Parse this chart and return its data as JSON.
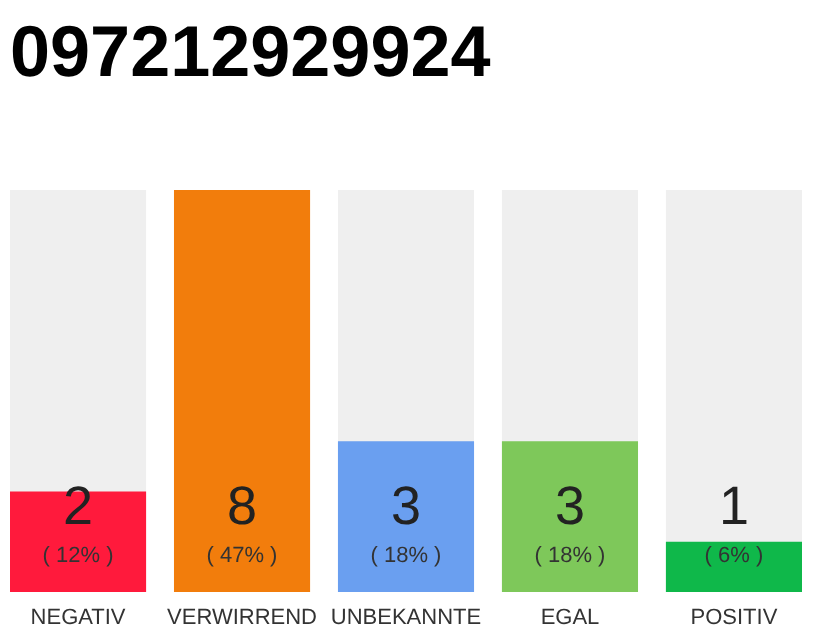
{
  "chart_data": {
    "type": "bar",
    "title": "097212929924",
    "categories": [
      "NEGATIV",
      "VERWIRREND",
      "UNBEKANNTE",
      "EGAL",
      "POSITIV"
    ],
    "values": [
      2,
      8,
      3,
      3,
      1
    ],
    "colors": [
      "#ff1a3c",
      "#f27d0c",
      "#6a9ff0",
      "#7ec85a",
      "#0fb84a"
    ],
    "ylim": [
      0,
      8
    ],
    "tick_labels": "x",
    "data_labels": true,
    "annotations": [
      "( 12% )",
      "( 47% )",
      "( 18% )",
      "( 18% )",
      "( 6% )"
    ]
  }
}
